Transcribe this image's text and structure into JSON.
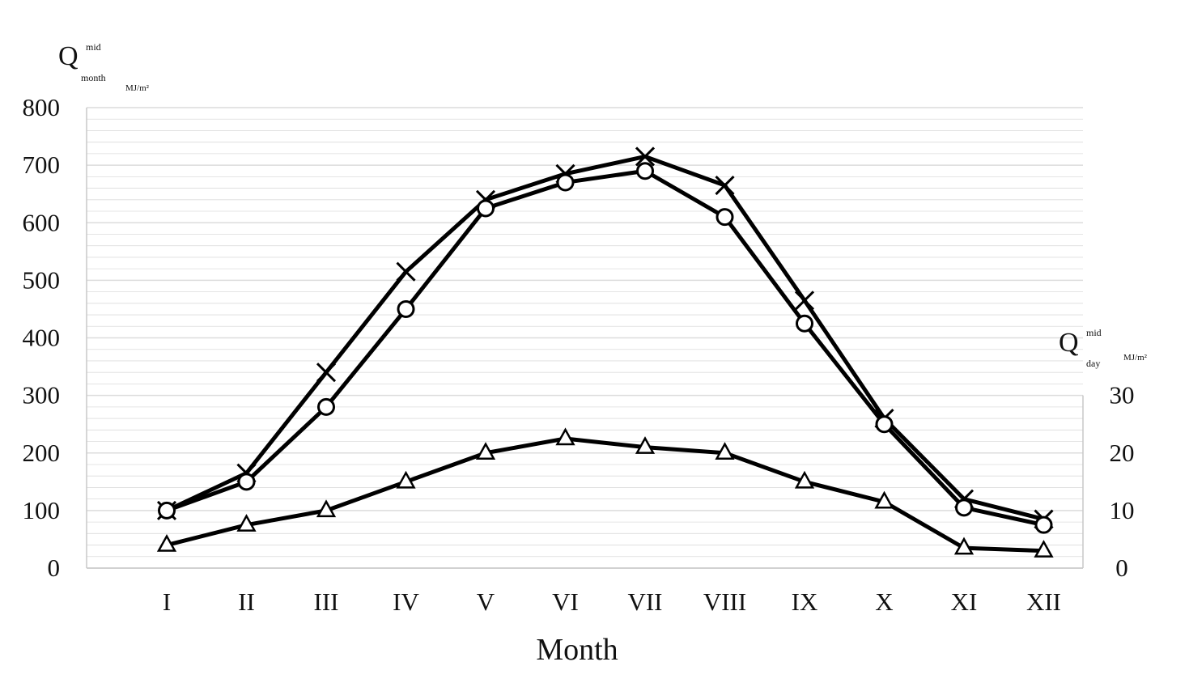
{
  "chart_data": {
    "type": "line",
    "categories": [
      "I",
      "II",
      "III",
      "IV",
      "V",
      "VI",
      "VII",
      "VIII",
      "IX",
      "X",
      "XI",
      "XII"
    ],
    "xlabel": "Month",
    "left_axis": {
      "label_main": "Q",
      "label_sup": "mid",
      "label_sub": "month",
      "label_unit": "MJ/m²",
      "ylim": [
        0,
        800
      ],
      "ticks": [
        "0",
        "100",
        "200",
        "300",
        "400",
        "500",
        "600",
        "700",
        "800"
      ]
    },
    "right_axis": {
      "label_main": "Q",
      "label_sup": "mid",
      "label_sub": "day",
      "label_unit": "MJ/m²",
      "ylim": [
        0,
        30
      ],
      "ticks": [
        "0",
        "10",
        "20",
        "30"
      ]
    },
    "grid": true,
    "series": [
      {
        "marker": "cross",
        "axis": "left",
        "values": [
          100,
          165,
          340,
          515,
          640,
          685,
          715,
          665,
          465,
          260,
          120,
          85
        ]
      },
      {
        "marker": "circle",
        "axis": "left",
        "values": [
          100,
          150,
          280,
          450,
          625,
          670,
          690,
          610,
          425,
          250,
          105,
          75
        ]
      },
      {
        "marker": "triangle",
        "axis": "right",
        "values": [
          4,
          7.5,
          10,
          15,
          20,
          22.5,
          21,
          20,
          15,
          11.5,
          3.5,
          3
        ]
      }
    ],
    "colors": {
      "line": "#000000",
      "grid": "#dcdcdc",
      "axis": "#c8c8c8"
    }
  }
}
